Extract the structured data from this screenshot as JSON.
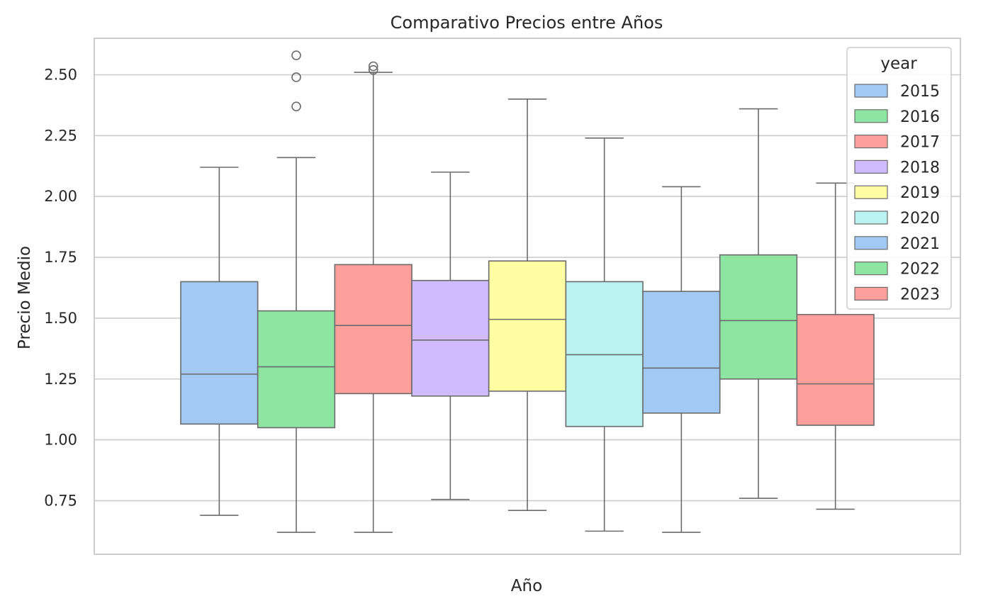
{
  "chart_data": {
    "type": "box",
    "title": "Comparativo Precios entre Años",
    "xlabel": "Año",
    "ylabel": "Precio Medio",
    "ylim": [
      0.53,
      2.65
    ],
    "yticks": [
      "0.75",
      "1.00",
      "1.25",
      "1.50",
      "1.75",
      "2.00",
      "2.25",
      "2.50"
    ],
    "grid": true,
    "legend": {
      "title": "year",
      "placement": "top-right"
    },
    "series": [
      {
        "name": "2015",
        "color": "#a1c9f4",
        "whislo": 0.69,
        "q1": 1.065,
        "med": 1.27,
        "q3": 1.65,
        "whishi": 2.12,
        "fliers": []
      },
      {
        "name": "2016",
        "color": "#8de5a1",
        "whislo": 0.62,
        "q1": 1.05,
        "med": 1.3,
        "q3": 1.53,
        "whishi": 2.16,
        "fliers": [
          2.37,
          2.49,
          2.58
        ]
      },
      {
        "name": "2017",
        "color": "#ff9f9b",
        "whislo": 0.62,
        "q1": 1.19,
        "med": 1.47,
        "q3": 1.72,
        "whishi": 2.51,
        "fliers": [
          2.52,
          2.535
        ]
      },
      {
        "name": "2018",
        "color": "#d0bbff",
        "whislo": 0.755,
        "q1": 1.18,
        "med": 1.41,
        "q3": 1.655,
        "whishi": 2.1,
        "fliers": []
      },
      {
        "name": "2019",
        "color": "#fffea3",
        "whislo": 0.71,
        "q1": 1.2,
        "med": 1.495,
        "q3": 1.735,
        "whishi": 2.4,
        "fliers": []
      },
      {
        "name": "2020",
        "color": "#b9f2f0",
        "whislo": 0.625,
        "q1": 1.055,
        "med": 1.35,
        "q3": 1.65,
        "whishi": 2.24,
        "fliers": []
      },
      {
        "name": "2021",
        "color": "#a1c9f4",
        "whislo": 0.62,
        "q1": 1.11,
        "med": 1.295,
        "q3": 1.61,
        "whishi": 2.04,
        "fliers": []
      },
      {
        "name": "2022",
        "color": "#8de5a1",
        "whislo": 0.76,
        "q1": 1.25,
        "med": 1.49,
        "q3": 1.76,
        "whishi": 2.36,
        "fliers": []
      },
      {
        "name": "2023",
        "color": "#ff9f9b",
        "whislo": 0.715,
        "q1": 1.06,
        "med": 1.23,
        "q3": 1.515,
        "whishi": 2.055,
        "fliers": []
      }
    ]
  }
}
